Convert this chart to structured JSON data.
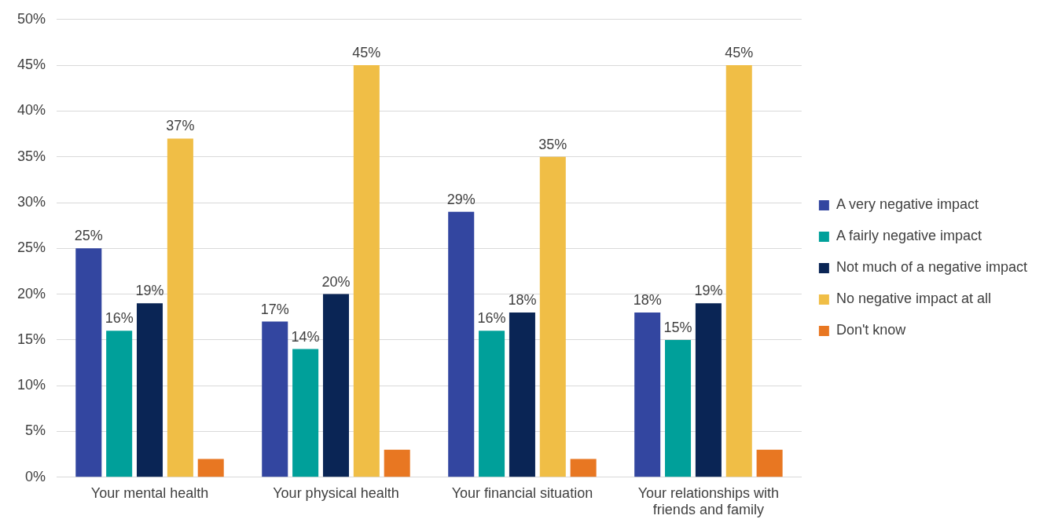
{
  "chart_data": {
    "type": "bar",
    "categories": [
      "Your mental health",
      "Your physical health",
      "Your financial situation",
      "Your relationships with friends and family"
    ],
    "series": [
      {
        "name": "A very negative impact",
        "color": "#3346a0",
        "values": [
          25,
          17,
          29,
          18
        ],
        "value_labels": [
          "25%",
          "17%",
          "29%",
          "18%"
        ]
      },
      {
        "name": "A fairly negative impact",
        "color": "#00a09a",
        "values": [
          16,
          14,
          16,
          15
        ],
        "value_labels": [
          "16%",
          "14%",
          "16%",
          "15%"
        ]
      },
      {
        "name": "Not much of a negative impact",
        "color": "#0a2555",
        "values": [
          19,
          20,
          18,
          19
        ],
        "value_labels": [
          "19%",
          "20%",
          "18%",
          "19%"
        ]
      },
      {
        "name": "No negative impact at all",
        "color": "#f0be46",
        "values": [
          37,
          45,
          35,
          45
        ],
        "value_labels": [
          "37%",
          "45%",
          "35%",
          "45%"
        ]
      },
      {
        "name": "Don't know",
        "color": "#e87722",
        "values": [
          2,
          3,
          2,
          3
        ],
        "value_labels": [
          null,
          null,
          null,
          null
        ]
      }
    ],
    "ylim": [
      0,
      50
    ],
    "yticks": [
      {
        "value": 0,
        "label": "0%"
      },
      {
        "value": 5,
        "label": "5%"
      },
      {
        "value": 10,
        "label": "10%"
      },
      {
        "value": 15,
        "label": "15%"
      },
      {
        "value": 20,
        "label": "20%"
      },
      {
        "value": 25,
        "label": "25%"
      },
      {
        "value": 30,
        "label": "30%"
      },
      {
        "value": 35,
        "label": "35%"
      },
      {
        "value": 40,
        "label": "40%"
      },
      {
        "value": 45,
        "label": "45%"
      },
      {
        "value": 50,
        "label": "50%"
      }
    ],
    "grid": "y",
    "legend": "right"
  }
}
